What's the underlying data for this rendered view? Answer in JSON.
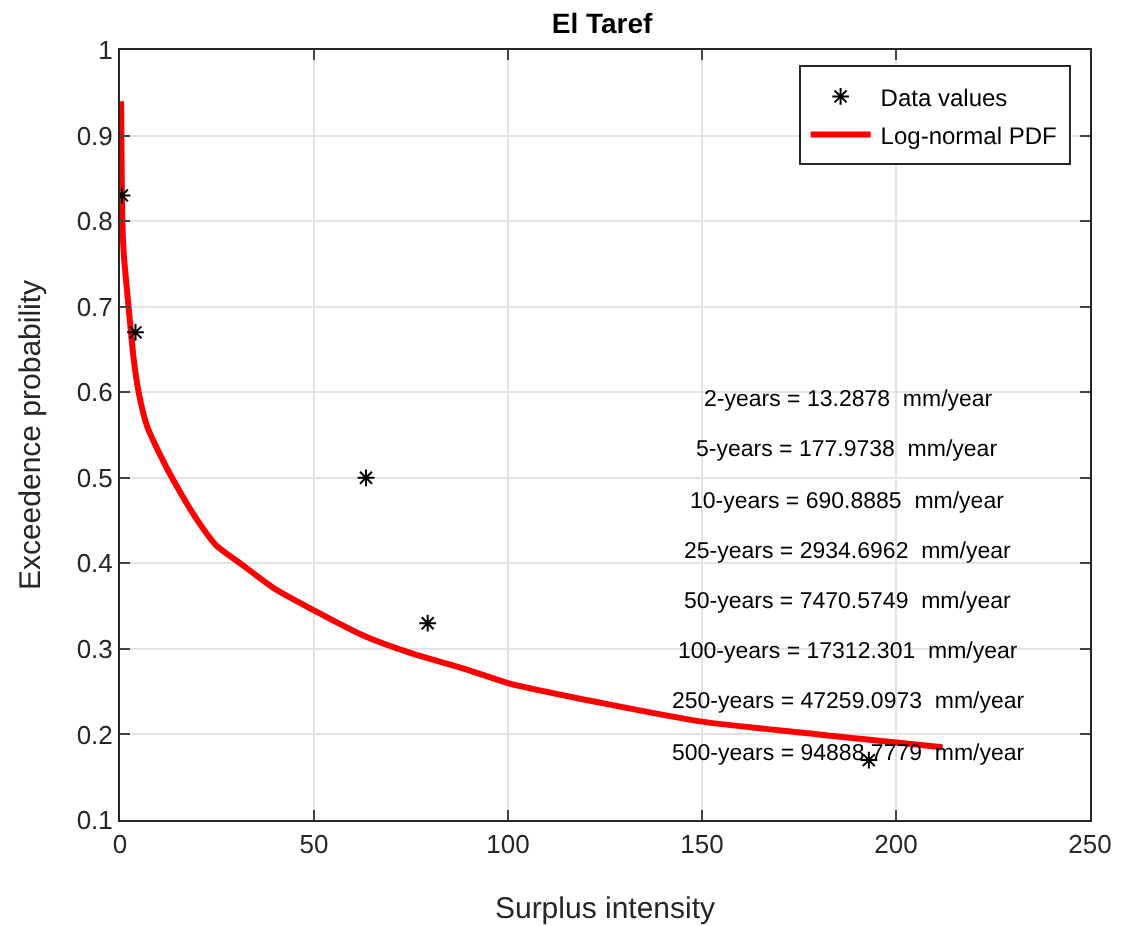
{
  "chart_data": {
    "type": "scatter",
    "title": "El Taref",
    "xlabel": "Surplus intensity",
    "ylabel": "Exceedence probability",
    "series": [
      {
        "name": "Data values",
        "marker": "cross",
        "color": "#000000",
        "x": [
          0.5,
          4,
          63.4,
          79.3,
          193
        ],
        "values": [
          0.83,
          0.67,
          0.5,
          0.33,
          0.17
        ]
      },
      {
        "name": "Log-normal PDF",
        "type": "line",
        "marker": "none",
        "color": "#ff0000",
        "x": [
          0.3,
          0.6,
          1,
          2.2,
          3.5,
          4.8,
          7,
          10,
          13.4,
          20,
          25,
          31,
          40,
          50,
          63,
          75,
          90,
          100,
          125,
          150,
          180,
          212
        ],
        "values": [
          0.94,
          0.8,
          0.76,
          0.7,
          0.64,
          0.6,
          0.56,
          0.53,
          0.5,
          0.45,
          0.42,
          0.4,
          0.37,
          0.345,
          0.315,
          0.295,
          0.275,
          0.26,
          0.236,
          0.215,
          0.2,
          0.185
        ]
      }
    ],
    "xlim": [
      0,
      250
    ],
    "xticks": [
      0,
      50,
      100,
      150,
      200,
      250
    ],
    "ylim": [
      0.1,
      1
    ],
    "yticks": [
      0.1,
      0.2,
      0.3,
      0.4,
      0.5,
      0.6,
      0.7,
      0.8,
      0.9,
      1
    ],
    "grid": true,
    "legend": "top right",
    "annotations": [
      "2-years = 13.2878  mm/year",
      "5-years = 177.9738  mm/year",
      "10-years = 690.8885  mm/year",
      "25-years = 2934.6962  mm/year",
      "50-years = 7470.5749  mm/year",
      "100-years = 17312.301  mm/year",
      "250-years = 47259.0973  mm/year",
      "500-years = 94888.7779  mm/year"
    ]
  }
}
